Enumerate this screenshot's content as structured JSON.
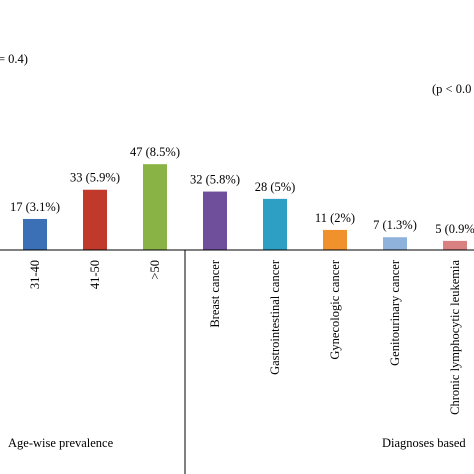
{
  "chart_data": {
    "type": "bar",
    "title": "",
    "xlabel": "",
    "ylabel": "",
    "ylim": [
      0,
      50
    ],
    "grid": false,
    "legend": "none",
    "p_values": [
      "= 0.4)",
      "(p < 0.0"
    ],
    "categories": [
      {
        "label": "31-40",
        "value": 17,
        "data_label": "17 (3.1%)",
        "color": "#3b6fb6"
      },
      {
        "label": "41-50",
        "value": 33,
        "data_label": "33 (5.9%)",
        "color": "#c0392b"
      },
      {
        "label": ">50",
        "value": 47,
        "data_label": "47 (8.5%)",
        "color": "#8ab346"
      },
      {
        "label": "Breast cancer",
        "value": 32,
        "data_label": "32 (5.8%)",
        "color": "#6f4e9c"
      },
      {
        "label": "Gastrointestinal cancer",
        "value": 28,
        "data_label": "28 (5%)",
        "color": "#2e9fc4"
      },
      {
        "label": "Gynecologic cancer",
        "value": 11,
        "data_label": "11 (2%)",
        "color": "#f0912c"
      },
      {
        "label": "Genitourinary cancer",
        "value": 7,
        "data_label": "7 (1.3%)",
        "color": "#8fb2dc"
      },
      {
        "label": "Chronic lymphocytic leukemia",
        "value": 5,
        "data_label": "5 (0.9%",
        "color": "#d98080"
      }
    ],
    "group_labels": [
      "Age-wise prevalence",
      "Diagnoses based"
    ]
  }
}
